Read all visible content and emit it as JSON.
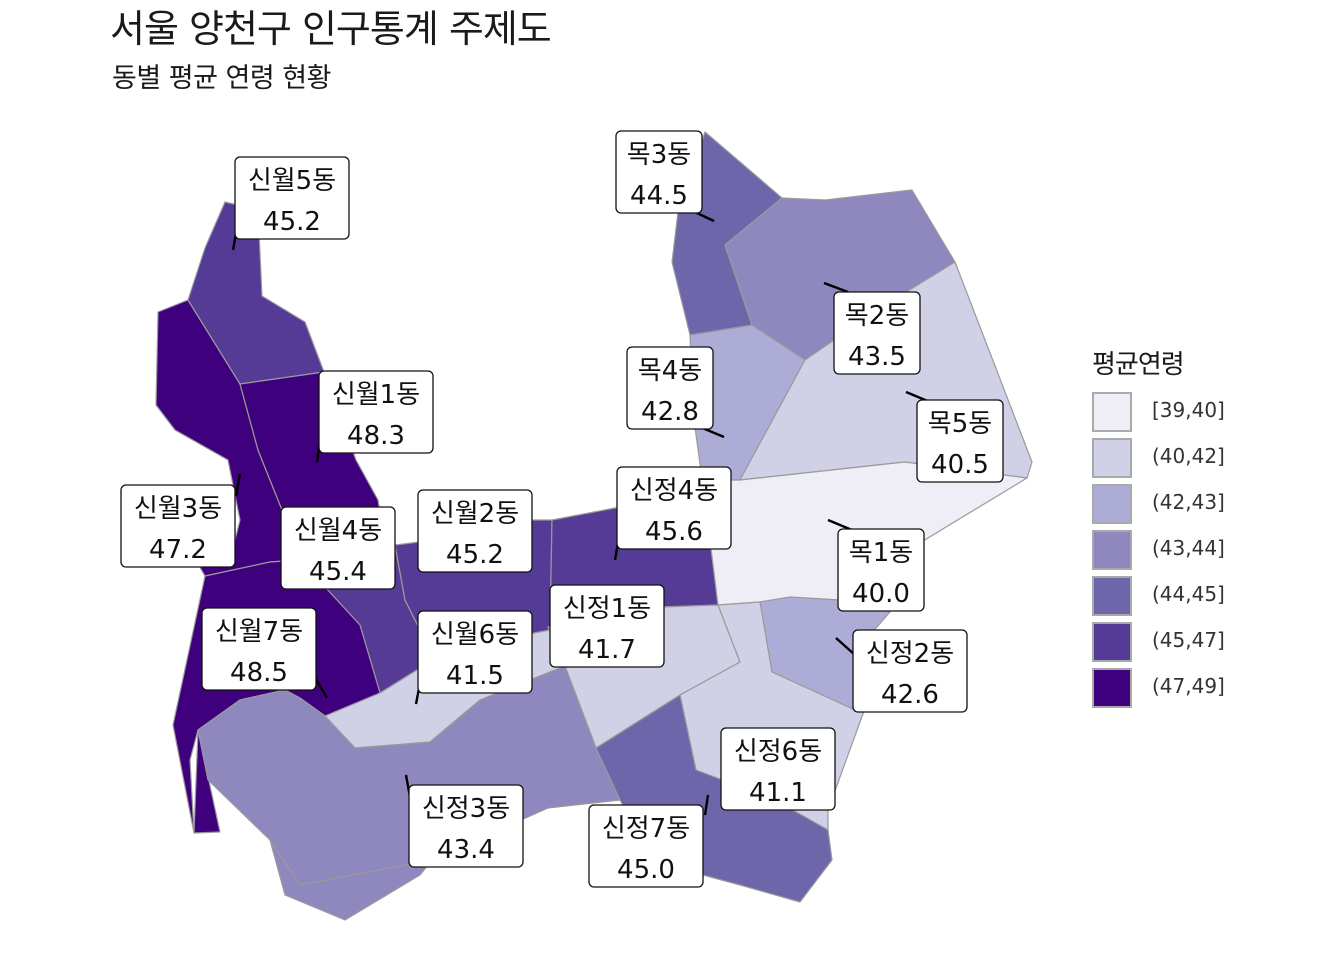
{
  "title": "서울 양천구 인구통계 주제도",
  "subtitle": "동별 평균 연령 현황",
  "legend": {
    "title": "평균연령",
    "items": [
      {
        "label": "[39,40]",
        "color": "#efedf5"
      },
      {
        "label": "(40,42]",
        "color": "#d0d0e6"
      },
      {
        "label": "(42,43]",
        "color": "#adacd6"
      },
      {
        "label": "(43,44]",
        "color": "#8e88be"
      },
      {
        "label": "(44,45]",
        "color": "#6d66aa"
      },
      {
        "label": "(45,47]",
        "color": "#553b95"
      },
      {
        "label": "(47,49]",
        "color": "#3f007d"
      }
    ]
  },
  "districts": [
    {
      "id": "mok3",
      "name": "목3동",
      "value": "44.5"
    },
    {
      "id": "sinwol5",
      "name": "신월5동",
      "value": "45.2"
    },
    {
      "id": "mok2",
      "name": "목2동",
      "value": "43.5"
    },
    {
      "id": "mok4",
      "name": "목4동",
      "value": "42.8"
    },
    {
      "id": "sinwol1",
      "name": "신월1동",
      "value": "48.3"
    },
    {
      "id": "mok5",
      "name": "목5동",
      "value": "40.5"
    },
    {
      "id": "sinjeong4",
      "name": "신정4동",
      "value": "45.6"
    },
    {
      "id": "sinwol3",
      "name": "신월3동",
      "value": "47.2"
    },
    {
      "id": "sinwol2",
      "name": "신월2동",
      "value": "45.2"
    },
    {
      "id": "sinwol4",
      "name": "신월4동",
      "value": "45.4"
    },
    {
      "id": "mok1",
      "name": "목1동",
      "value": "40.0"
    },
    {
      "id": "sinjeong1",
      "name": "신정1동",
      "value": "41.7"
    },
    {
      "id": "sinwol7",
      "name": "신월7동",
      "value": "48.5"
    },
    {
      "id": "sinwol6",
      "name": "신월6동",
      "value": "41.5"
    },
    {
      "id": "sinjeong2",
      "name": "신정2동",
      "value": "42.6"
    },
    {
      "id": "sinjeong6",
      "name": "신정6동",
      "value": "41.1"
    },
    {
      "id": "sinjeong3",
      "name": "신정3동",
      "value": "43.4"
    },
    {
      "id": "sinjeong7",
      "name": "신정7동",
      "value": "45.0"
    }
  ]
}
